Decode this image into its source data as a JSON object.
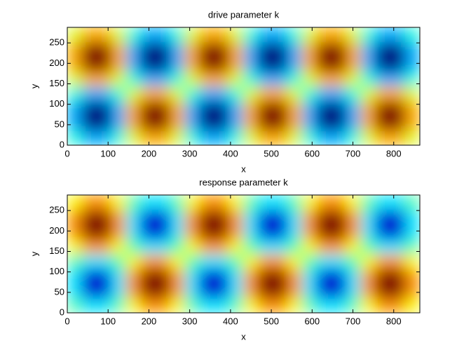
{
  "chart_data": [
    {
      "type": "heatmap",
      "title": "drive parameter k",
      "xlabel": "x",
      "ylabel": "y",
      "xlim": [
        0,
        864
      ],
      "ylim": [
        0,
        288
      ],
      "clim": [
        -0.85,
        0.85
      ],
      "colormap": "jet",
      "xticks": [
        0,
        100,
        200,
        300,
        400,
        500,
        600,
        700,
        800
      ],
      "yticks": [
        0,
        50,
        100,
        150,
        200,
        250
      ],
      "x": [
        18,
        54,
        90,
        126,
        162,
        198,
        234,
        270,
        306,
        342,
        378,
        414,
        450,
        486,
        522,
        558,
        594,
        630,
        666,
        702,
        738,
        774,
        810,
        846
      ],
      "y": [
        18,
        54,
        90,
        126,
        162,
        198,
        234,
        270
      ],
      "z": [
        [
          -0.15,
          -0.35,
          -0.35,
          -0.15,
          0.15,
          0.35,
          0.35,
          0.15,
          -0.15,
          -0.35,
          -0.35,
          -0.15,
          0.15,
          0.35,
          0.35,
          0.15,
          -0.15,
          -0.35,
          -0.35,
          -0.15,
          0.15,
          0.35,
          0.35,
          0.15
        ],
        [
          -0.35,
          -0.85,
          -0.85,
          -0.35,
          0.35,
          0.85,
          0.85,
          0.35,
          -0.35,
          -0.85,
          -0.85,
          -0.35,
          0.35,
          0.85,
          0.85,
          0.35,
          -0.35,
          -0.85,
          -0.85,
          -0.35,
          0.35,
          0.85,
          0.85,
          0.35
        ],
        [
          -0.35,
          -0.85,
          -0.85,
          -0.35,
          0.35,
          0.85,
          0.85,
          0.35,
          -0.35,
          -0.85,
          -0.85,
          -0.35,
          0.35,
          0.85,
          0.85,
          0.35,
          -0.35,
          -0.85,
          -0.85,
          -0.35,
          0.35,
          0.85,
          0.85,
          0.35
        ],
        [
          -0.15,
          -0.35,
          -0.35,
          -0.15,
          0.15,
          0.35,
          0.35,
          0.15,
          -0.15,
          -0.35,
          -0.35,
          -0.15,
          0.15,
          0.35,
          0.35,
          0.15,
          -0.15,
          -0.35,
          -0.35,
          -0.15,
          0.15,
          0.35,
          0.35,
          0.15
        ],
        [
          0.15,
          0.35,
          0.35,
          0.15,
          -0.15,
          -0.35,
          -0.35,
          -0.15,
          0.15,
          0.35,
          0.35,
          0.15,
          -0.15,
          -0.35,
          -0.35,
          -0.15,
          0.15,
          0.35,
          0.35,
          0.15,
          -0.15,
          -0.35,
          -0.35,
          -0.15
        ],
        [
          0.35,
          0.85,
          0.85,
          0.35,
          -0.35,
          -0.85,
          -0.85,
          -0.35,
          0.35,
          0.85,
          0.85,
          0.35,
          -0.35,
          -0.85,
          -0.85,
          -0.35,
          0.35,
          0.85,
          0.85,
          0.35,
          -0.35,
          -0.85,
          -0.85,
          -0.35
        ],
        [
          0.35,
          0.85,
          0.85,
          0.35,
          -0.35,
          -0.85,
          -0.85,
          -0.35,
          0.35,
          0.85,
          0.85,
          0.35,
          -0.35,
          -0.85,
          -0.85,
          -0.35,
          0.35,
          0.85,
          0.85,
          0.35,
          -0.35,
          -0.85,
          -0.85,
          -0.35
        ],
        [
          0.15,
          0.35,
          0.35,
          0.15,
          -0.15,
          -0.35,
          -0.35,
          -0.15,
          0.15,
          0.35,
          0.35,
          0.15,
          -0.15,
          -0.35,
          -0.35,
          -0.15,
          0.15,
          0.35,
          0.35,
          0.15,
          -0.15,
          -0.35,
          -0.35,
          -0.15
        ]
      ]
    },
    {
      "type": "heatmap",
      "title": "response parameter k",
      "xlabel": "x",
      "ylabel": "y",
      "xlim": [
        0,
        864
      ],
      "ylim": [
        0,
        288
      ],
      "clim": [
        -1,
        0.85
      ],
      "colormap": "jet",
      "xticks": [
        0,
        100,
        200,
        300,
        400,
        500,
        600,
        700,
        800
      ],
      "yticks": [
        0,
        50,
        100,
        150,
        200,
        250
      ],
      "x": [
        18,
        54,
        90,
        126,
        162,
        198,
        234,
        270,
        306,
        342,
        378,
        414,
        450,
        486,
        522,
        558,
        594,
        630,
        666,
        702,
        738,
        774,
        810,
        846
      ],
      "y": [
        18,
        54,
        90,
        126,
        162,
        198,
        234,
        270
      ],
      "z": [
        [
          -0.15,
          -0.35,
          -0.35,
          -0.15,
          0.15,
          0.35,
          0.35,
          0.15,
          -0.15,
          -0.35,
          -0.35,
          -0.15,
          0.15,
          0.35,
          0.35,
          0.15,
          -0.15,
          -0.35,
          -0.35,
          -0.15,
          0.15,
          0.35,
          0.35,
          0.15
        ],
        [
          -0.35,
          -0.85,
          -0.85,
          -0.35,
          0.35,
          0.85,
          0.85,
          0.35,
          -0.35,
          -0.85,
          -0.85,
          -0.35,
          0.35,
          0.85,
          0.85,
          0.35,
          -0.35,
          -0.85,
          -0.85,
          -0.35,
          0.35,
          0.85,
          0.85,
          0.35
        ],
        [
          -0.35,
          -0.85,
          -0.85,
          -0.35,
          0.35,
          0.85,
          0.85,
          0.35,
          -0.35,
          -0.85,
          -0.85,
          -0.35,
          0.35,
          0.85,
          0.85,
          0.35,
          -0.35,
          -0.85,
          -0.85,
          -0.35,
          0.35,
          0.85,
          0.85,
          0.35
        ],
        [
          -0.15,
          -0.35,
          -0.35,
          -0.15,
          0.15,
          0.35,
          0.35,
          0.15,
          -0.15,
          -0.35,
          -0.35,
          -0.15,
          0.15,
          0.35,
          0.35,
          0.15,
          -0.15,
          -0.35,
          -0.35,
          -0.15,
          0.15,
          0.35,
          0.35,
          0.15
        ],
        [
          0.15,
          0.35,
          0.35,
          0.15,
          -0.15,
          -0.35,
          -0.35,
          -0.15,
          0.15,
          0.35,
          0.35,
          0.15,
          -0.15,
          -0.35,
          -0.35,
          -0.15,
          0.15,
          0.35,
          0.35,
          0.15,
          -0.15,
          -0.35,
          -0.35,
          -0.15
        ],
        [
          0.35,
          0.85,
          0.85,
          0.35,
          -0.35,
          -0.85,
          -0.85,
          -0.35,
          0.35,
          0.85,
          0.85,
          0.35,
          -0.35,
          -0.85,
          -0.85,
          -0.35,
          0.35,
          0.85,
          0.85,
          0.35,
          -0.35,
          -0.85,
          -0.85,
          -0.35
        ],
        [
          0.35,
          0.85,
          0.85,
          0.35,
          -0.35,
          -0.85,
          -0.85,
          -0.35,
          0.35,
          0.85,
          0.85,
          0.35,
          -0.35,
          -0.85,
          -0.85,
          -0.35,
          0.35,
          0.85,
          0.85,
          0.35,
          -0.35,
          -0.85,
          -0.85,
          -0.35
        ],
        [
          0.15,
          0.35,
          0.35,
          0.15,
          -0.15,
          -0.35,
          -0.35,
          -0.15,
          0.15,
          0.35,
          0.35,
          0.15,
          -0.15,
          -0.35,
          -0.35,
          -0.15,
          0.15,
          0.35,
          0.35,
          0.15,
          -0.15,
          -0.35,
          -0.35,
          -0.15
        ]
      ]
    }
  ]
}
